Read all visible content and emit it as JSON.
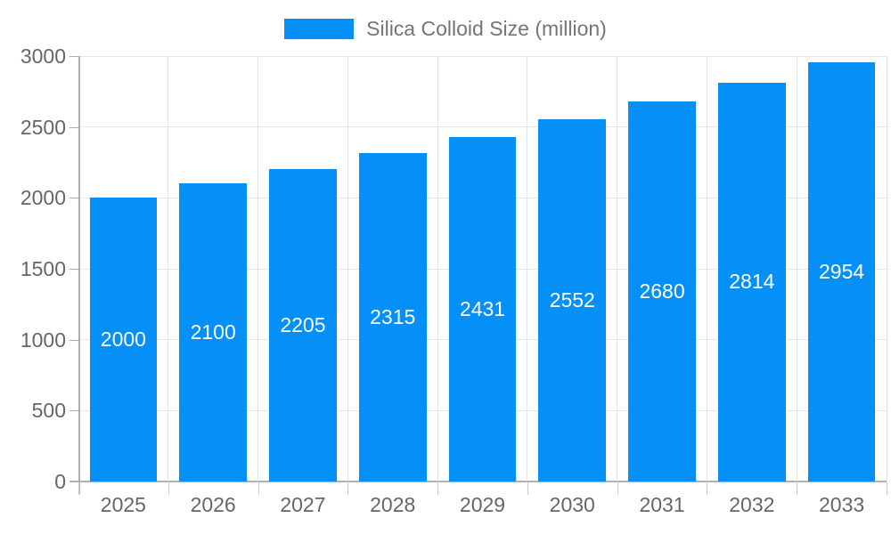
{
  "chart_data": {
    "type": "bar",
    "title": "",
    "legend": {
      "position": "top",
      "label": "Silica Colloid Size (million)"
    },
    "categories": [
      "2025",
      "2026",
      "2027",
      "2028",
      "2029",
      "2030",
      "2031",
      "2032",
      "2033"
    ],
    "series": [
      {
        "name": "Silica Colloid Size (million)",
        "values": [
          2000,
          2100,
          2205,
          2315,
          2431,
          2552,
          2680,
          2814,
          2954
        ],
        "data_labels": [
          "2000",
          "2100",
          "2205",
          "2315",
          "2431",
          "2552",
          "2680",
          "2814",
          "2954"
        ]
      }
    ],
    "xlabel": "",
    "ylabel": "",
    "ylim": [
      0,
      3000
    ],
    "yticks": [
      0,
      500,
      1000,
      1500,
      2000,
      2500,
      3000
    ],
    "ytick_labels": [
      "0",
      "500",
      "1000",
      "1500",
      "2000",
      "2500",
      "3000"
    ],
    "grid": true,
    "colors": {
      "bar": "#0590f8",
      "bar_label_text": "#ffffff",
      "legend_text": "#757575",
      "axis_text": "#666666",
      "gridline": "#e6e6e6",
      "axis_line": "#b0b0b0",
      "background": "#ffffff"
    }
  }
}
